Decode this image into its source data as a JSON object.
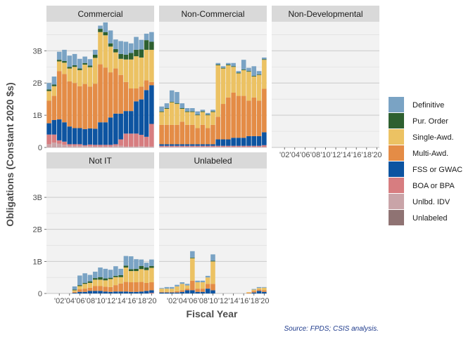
{
  "chart_data": {
    "type": "bar",
    "stacked": true,
    "facet_layout": "3 columns x 2 rows",
    "ylabel": "Obligations (Constant 2020 $s)",
    "xlabel": "Fiscal Year",
    "caption": "Source: FPDS; CSIS analysis.",
    "ylim": [
      0,
      3.9
    ],
    "y_ticks": [
      0,
      1,
      2,
      3
    ],
    "y_tick_labels": [
      "0",
      "1B",
      "2B",
      "3B"
    ],
    "x_ticks": [
      2002,
      2004,
      2006,
      2008,
      2010,
      2012,
      2014,
      2016,
      2018,
      2020
    ],
    "x_tick_labels": [
      "'02",
      "'04",
      "'06",
      "'08",
      "'10",
      "'12",
      "'14",
      "'16",
      "'18",
      "'20"
    ],
    "grid": true,
    "legend_position": "right",
    "x": [
      2000,
      2001,
      2002,
      2003,
      2004,
      2005,
      2006,
      2007,
      2008,
      2009,
      2010,
      2011,
      2012,
      2013,
      2014,
      2015,
      2016,
      2017,
      2018,
      2019,
      2020
    ],
    "series_order": [
      "Unlabeled",
      "Unlbd. IDV",
      "BOA or BPA",
      "FSS or GWAC",
      "Multi-Awd.",
      "Single-Awd.",
      "Pur. Order",
      "Definitive"
    ],
    "legend_order": [
      "Definitive",
      "Pur. Order",
      "Single-Awd.",
      "Multi-Awd.",
      "FSS or GWAC",
      "BOA or BPA",
      "Unlbd. IDV",
      "Unlabeled"
    ],
    "colors": {
      "Definitive": "#7aa3c4",
      "Pur. Order": "#2e6030",
      "Single-Awd.": "#ecc263",
      "Multi-Awd.": "#e48c46",
      "FSS or GWAC": "#0d54a1",
      "BOA or BPA": "#d77d80",
      "Unlbd. IDV": "#c9a4a8",
      "Unlabeled": "#8f7373"
    },
    "facets": [
      {
        "label": "Commercial",
        "series": [
          {
            "name": "Unlabeled",
            "values": [
              0,
              0,
              0,
              0,
              0,
              0,
              0,
              0,
              0,
              0,
              0,
              0,
              0,
              0,
              0,
              0,
              0,
              0,
              0,
              0,
              0
            ]
          },
          {
            "name": "Unlbd. IDV",
            "values": [
              0.1,
              0.15,
              0.12,
              0.08,
              0.05,
              0.05,
              0.05,
              0.04,
              0.04,
              0.03,
              0.03,
              0.03,
              0.03,
              0.05,
              0.05,
              0.03,
              0.03,
              0.03,
              0.04,
              0.03,
              0.03
            ]
          },
          {
            "name": "BOA or BPA",
            "values": [
              0.3,
              0.25,
              0.1,
              0.1,
              0.05,
              0.05,
              0.05,
              0.03,
              0.05,
              0.05,
              0.05,
              0.05,
              0.05,
              0.05,
              0.2,
              0.4,
              0.4,
              0.4,
              0.35,
              0.3,
              0.7
            ]
          },
          {
            "name": "FSS or GWAC",
            "values": [
              0.35,
              0.45,
              0.65,
              0.6,
              0.55,
              0.5,
              0.5,
              0.5,
              0.5,
              0.5,
              0.7,
              0.7,
              0.85,
              0.95,
              0.8,
              0.7,
              0.7,
              1.0,
              1.1,
              1.45,
              1.2
            ]
          },
          {
            "name": "Multi-Awd.",
            "values": [
              0.7,
              0.75,
              1.5,
              1.5,
              1.4,
              1.4,
              1.3,
              1.4,
              1.3,
              1.4,
              1.8,
              1.7,
              1.4,
              1.4,
              1.2,
              0.9,
              0.7,
              0.4,
              0.4,
              0.3,
              0.1
            ]
          },
          {
            "name": "Single-Awd.",
            "values": [
              0.3,
              0.3,
              0.3,
              0.35,
              0.4,
              0.5,
              0.5,
              0.6,
              0.6,
              0.8,
              1.0,
              1.0,
              0.8,
              0.5,
              0.5,
              0.7,
              0.9,
              1.0,
              0.9,
              0.95,
              1.0
            ]
          },
          {
            "name": "Pur. Order",
            "values": [
              0.05,
              0.05,
              0.05,
              0.05,
              0.05,
              0.05,
              0.05,
              0.05,
              0.05,
              0.1,
              0.1,
              0.1,
              0.1,
              0.1,
              0.15,
              0.15,
              0.2,
              0.2,
              0.25,
              0.3,
              0.25
            ]
          },
          {
            "name": "Definitive",
            "values": [
              0.2,
              0.25,
              0.25,
              0.35,
              0.35,
              0.35,
              0.3,
              0.2,
              0.2,
              0.15,
              0.1,
              0.3,
              0.4,
              0.3,
              0.4,
              0.4,
              0.3,
              0.4,
              0.3,
              0.2,
              0.3
            ]
          }
        ]
      },
      {
        "label": "Non-Commercial",
        "series": [
          {
            "name": "Unlabeled",
            "values": [
              0,
              0,
              0,
              0,
              0,
              0,
              0,
              0,
              0,
              0,
              0,
              0,
              0,
              0,
              0,
              0,
              0,
              0,
              0,
              0,
              0
            ]
          },
          {
            "name": "Unlbd. IDV",
            "values": [
              0.02,
              0.02,
              0.02,
              0.02,
              0.02,
              0.02,
              0.02,
              0.02,
              0.02,
              0.02,
              0.02,
              0.02,
              0.02,
              0.02,
              0.02,
              0.02,
              0.02,
              0.02,
              0.02,
              0.02,
              0.02
            ]
          },
          {
            "name": "BOA or BPA",
            "values": [
              0.03,
              0.03,
              0.03,
              0.03,
              0.03,
              0.03,
              0.03,
              0.03,
              0.03,
              0.03,
              0.03,
              0.03,
              0.03,
              0.03,
              0.03,
              0.03,
              0.03,
              0.03,
              0.03,
              0.03,
              0.05
            ]
          },
          {
            "name": "FSS or GWAC",
            "values": [
              0.05,
              0.05,
              0.05,
              0.05,
              0.05,
              0.05,
              0.05,
              0.05,
              0.05,
              0.05,
              0.05,
              0.2,
              0.2,
              0.2,
              0.25,
              0.25,
              0.25,
              0.3,
              0.3,
              0.3,
              0.4
            ]
          },
          {
            "name": "Multi-Awd.",
            "values": [
              0.6,
              0.6,
              0.6,
              0.6,
              0.7,
              0.6,
              0.6,
              0.5,
              0.6,
              0.5,
              0.6,
              0.7,
              1.1,
              1.3,
              1.4,
              1.3,
              1.3,
              1.1,
              1.2,
              1.1,
              1.35
            ]
          },
          {
            "name": "Single-Awd.",
            "values": [
              0.4,
              0.5,
              0.7,
              0.65,
              0.4,
              0.4,
              0.4,
              0.4,
              0.4,
              0.4,
              0.4,
              1.6,
              1.1,
              1.0,
              0.8,
              0.7,
              0.8,
              0.9,
              0.65,
              0.8,
              0.9
            ]
          },
          {
            "name": "Pur. Order",
            "values": [
              0.02,
              0.02,
              0.02,
              0.02,
              0.02,
              0.02,
              0.02,
              0.02,
              0.02,
              0.02,
              0.02,
              0.02,
              0.02,
              0.02,
              0.02,
              0.02,
              0.02,
              0.02,
              0.02,
              0.02,
              0.02
            ]
          },
          {
            "name": "Definitive",
            "values": [
              0.15,
              0.15,
              0.35,
              0.35,
              0.15,
              0.1,
              0.1,
              0.1,
              0.05,
              0.05,
              0.05,
              0.05,
              0.05,
              0.05,
              0.1,
              0.05,
              0.3,
              0.1,
              0.3,
              0.1,
              0.05
            ]
          }
        ]
      },
      {
        "label": "Non-Developmental",
        "series": []
      },
      {
        "label": "Not IT",
        "series": [
          {
            "name": "Unlabeled",
            "values": [
              0,
              0,
              0,
              0,
              0,
              0,
              0,
              0,
              0,
              0,
              0,
              0,
              0,
              0,
              0,
              0,
              0,
              0,
              0,
              0,
              0
            ]
          },
          {
            "name": "Unlbd. IDV",
            "values": [
              0,
              0,
              0,
              0,
              0,
              0,
              0,
              0,
              0,
              0,
              0,
              0,
              0,
              0,
              0,
              0,
              0,
              0,
              0,
              0,
              0
            ]
          },
          {
            "name": "BOA or BPA",
            "values": [
              0,
              0,
              0,
              0,
              0,
              0,
              0,
              0,
              0,
              0,
              0,
              0,
              0,
              0,
              0,
              0,
              0,
              0,
              0,
              0,
              0.02
            ]
          },
          {
            "name": "FSS or GWAC",
            "values": [
              0,
              0,
              0,
              0,
              0,
              0.02,
              0.05,
              0.05,
              0.08,
              0.08,
              0.08,
              0.06,
              0.05,
              0.06,
              0.06,
              0.06,
              0.05,
              0.05,
              0.06,
              0.08,
              0.08
            ]
          },
          {
            "name": "Multi-Awd.",
            "values": [
              0,
              0,
              0,
              0,
              0,
              0.03,
              0.08,
              0.1,
              0.1,
              0.15,
              0.15,
              0.15,
              0.15,
              0.2,
              0.25,
              0.3,
              0.3,
              0.3,
              0.3,
              0.25,
              0.25
            ]
          },
          {
            "name": "Single-Awd.",
            "values": [
              0,
              0,
              0,
              0,
              0,
              0.05,
              0.1,
              0.15,
              0.15,
              0.2,
              0.2,
              0.2,
              0.25,
              0.25,
              0.2,
              0.45,
              0.35,
              0.35,
              0.4,
              0.4,
              0.45
            ]
          },
          {
            "name": "Pur. Order",
            "values": [
              0,
              0,
              0,
              0,
              0,
              0.02,
              0.03,
              0.03,
              0.05,
              0.05,
              0.08,
              0.06,
              0.04,
              0.04,
              0.06,
              0.06,
              0.06,
              0.07,
              0.1,
              0.08,
              0.06
            ]
          },
          {
            "name": "Definitive",
            "values": [
              0,
              0,
              0,
              0,
              0,
              0.1,
              0.3,
              0.3,
              0.2,
              0.2,
              0.3,
              0.3,
              0.25,
              0.3,
              0.2,
              0.3,
              0.4,
              0.3,
              0.2,
              0.15,
              0.2
            ]
          }
        ]
      },
      {
        "label": "Unlabeled",
        "series": [
          {
            "name": "Unlabeled",
            "values": [
              0,
              0,
              0,
              0,
              0,
              0,
              0,
              0,
              0,
              0,
              0,
              0,
              0,
              0,
              0,
              0,
              0,
              0,
              0,
              0,
              0
            ]
          },
          {
            "name": "Unlbd. IDV",
            "values": [
              0,
              0,
              0,
              0,
              0,
              0,
              0,
              0,
              0,
              0,
              0,
              0,
              0,
              0,
              0,
              0,
              0,
              0,
              0,
              0,
              0
            ]
          },
          {
            "name": "BOA or BPA",
            "values": [
              0,
              0,
              0,
              0,
              0,
              0,
              0,
              0,
              0,
              0,
              0,
              0,
              0,
              0,
              0,
              0,
              0,
              0,
              0,
              0,
              0
            ]
          },
          {
            "name": "FSS or GWAC",
            "values": [
              0.03,
              0.03,
              0.03,
              0.03,
              0.05,
              0.1,
              0.1,
              0.05,
              0.05,
              0.15,
              0.1,
              0,
              0,
              0,
              0,
              0,
              0,
              0,
              0.03,
              0.08,
              0.05
            ]
          },
          {
            "name": "Multi-Awd.",
            "values": [
              0.02,
              0.02,
              0.02,
              0.04,
              0.05,
              0.05,
              0.3,
              0.1,
              0.1,
              0.15,
              0.2,
              0,
              0,
              0,
              0,
              0,
              0,
              0.02,
              0.05,
              0.04,
              0.05
            ]
          },
          {
            "name": "Single-Awd.",
            "values": [
              0.1,
              0.1,
              0.1,
              0.15,
              0.2,
              0.1,
              0.7,
              0.2,
              0.2,
              0.2,
              0.7,
              0,
              0,
              0,
              0,
              0,
              0,
              0.02,
              0.04,
              0.05,
              0.08
            ]
          },
          {
            "name": "Pur. Order",
            "values": [
              0,
              0,
              0,
              0,
              0,
              0,
              0.02,
              0,
              0,
              0,
              0.02,
              0,
              0,
              0,
              0,
              0,
              0,
              0,
              0,
              0,
              0
            ]
          },
          {
            "name": "Definitive",
            "values": [
              0.02,
              0.05,
              0.05,
              0.05,
              0.05,
              0.05,
              0.2,
              0.05,
              0.05,
              0.05,
              0.2,
              0,
              0,
              0,
              0,
              0,
              0,
              0,
              0.02,
              0.03,
              0.02
            ]
          }
        ]
      }
    ]
  }
}
